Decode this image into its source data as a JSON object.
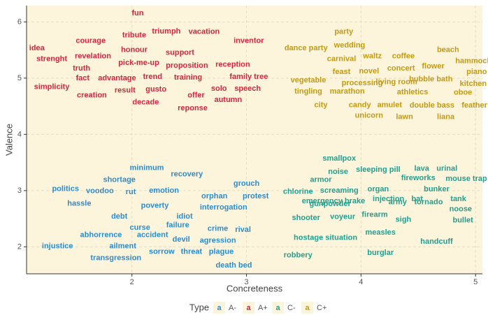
{
  "chart_data": {
    "type": "text-scatter",
    "x_label": "Concreteness",
    "y_label": "Valence",
    "xlim": [
      1.08,
      5.06
    ],
    "ylim": [
      1.52,
      6.29
    ],
    "xticks": [
      2,
      3,
      4,
      5
    ],
    "yticks": [
      2,
      3,
      4,
      5,
      6
    ],
    "grid": true,
    "legend_title": "Type",
    "legend_glyph": "a",
    "legend_position": "bottom",
    "series": [
      {
        "name": "A-",
        "color": "#2b8cd0",
        "labels": [
          "minimum",
          "recovery",
          "shortage",
          "grouch",
          "politics",
          "voodoo",
          "rut",
          "emotion",
          "orphan",
          "protest",
          "hassle",
          "poverty",
          "interrogation",
          "debt",
          "idiot",
          "curse",
          "failure",
          "crime",
          "rival",
          "abhorrence",
          "accident",
          "devil",
          "agression",
          "injustice",
          "ailment",
          "sorrow",
          "threat",
          "plague",
          "transgression",
          "death bed"
        ],
        "x": [
          2.13,
          2.48,
          1.89,
          3.0,
          1.42,
          1.72,
          1.99,
          2.28,
          2.72,
          3.08,
          1.54,
          2.2,
          2.8,
          1.89,
          2.46,
          2.07,
          2.4,
          2.75,
          2.97,
          1.73,
          2.18,
          2.43,
          2.75,
          1.35,
          1.92,
          2.26,
          2.52,
          2.78,
          1.86,
          2.89
        ],
        "y": [
          3.4,
          3.29,
          3.19,
          3.12,
          3.03,
          2.99,
          2.97,
          3.0,
          2.9,
          2.9,
          2.77,
          2.73,
          2.7,
          2.54,
          2.54,
          2.34,
          2.38,
          2.32,
          2.3,
          2.21,
          2.21,
          2.13,
          2.11,
          2.01,
          2.01,
          1.91,
          1.91,
          1.91,
          1.8,
          1.67
        ]
      },
      {
        "name": "A+",
        "color": "#d7263d",
        "labels": [
          "fun",
          "tribute",
          "triumph",
          "vacation",
          "inventor",
          "courage",
          "idea",
          "honour",
          "support",
          "strenght",
          "revelation",
          "pick-me-up",
          "proposition",
          "reception",
          "truth",
          "family tree",
          "fact",
          "advantage",
          "trend",
          "training",
          "simplicity",
          "result",
          "gusto",
          "solo",
          "speech",
          "creation",
          "offer",
          "autumn",
          "decade",
          "reponse"
        ],
        "x": [
          2.05,
          2.02,
          2.3,
          2.63,
          3.02,
          1.64,
          1.17,
          2.02,
          2.42,
          1.3,
          1.66,
          2.06,
          2.48,
          2.88,
          1.56,
          3.02,
          1.57,
          1.87,
          2.18,
          2.49,
          1.3,
          1.94,
          2.21,
          2.76,
          3.01,
          1.65,
          2.56,
          2.84,
          2.12,
          2.53
        ],
        "y": [
          6.15,
          5.76,
          5.83,
          5.82,
          5.66,
          5.66,
          5.53,
          5.5,
          5.45,
          5.34,
          5.39,
          5.27,
          5.22,
          5.24,
          5.17,
          5.02,
          5.0,
          5.0,
          5.02,
          5.01,
          4.84,
          4.78,
          4.8,
          4.81,
          4.81,
          4.69,
          4.69,
          4.61,
          4.57,
          4.46
        ]
      },
      {
        "name": "C-",
        "color": "#21a08f",
        "labels": [
          "smallpox",
          "noise",
          "sleeping pill",
          "lava",
          "urinal",
          "armor",
          "fireworks",
          "mouse trap",
          "chlorine",
          "screaming",
          "organ",
          "bunker",
          "emergency brake",
          "injection",
          "bat",
          "tank",
          "gunpowder",
          "army",
          "tornado",
          "voyeur",
          "firearm",
          "noose",
          "shooter",
          "sigh",
          "bullet",
          "hostage situation",
          "measles",
          "handcuff",
          "robbery",
          "burglar"
        ],
        "x": [
          3.81,
          3.8,
          4.15,
          4.53,
          4.75,
          3.65,
          4.5,
          4.92,
          3.45,
          3.81,
          4.15,
          4.66,
          3.76,
          4.24,
          4.49,
          4.85,
          3.73,
          4.32,
          4.59,
          3.84,
          4.12,
          4.87,
          3.52,
          4.37,
          4.89,
          3.69,
          4.17,
          4.66,
          3.45,
          4.17
        ],
        "y": [
          3.57,
          3.33,
          3.37,
          3.39,
          3.39,
          3.19,
          3.22,
          3.21,
          2.98,
          3.0,
          3.02,
          3.02,
          2.81,
          2.85,
          2.85,
          2.85,
          2.76,
          2.79,
          2.79,
          2.53,
          2.57,
          2.67,
          2.51,
          2.48,
          2.47,
          2.16,
          2.25,
          2.09,
          1.85,
          1.89
        ]
      },
      {
        "name": "C+",
        "color": "#c39a12",
        "labels": [
          "party",
          "wedding",
          "dance party",
          "beach",
          "carnival",
          "waltz",
          "coffee",
          "hammock",
          "concert",
          "flower",
          "feast",
          "novel",
          "piano",
          "vegetable",
          "processing",
          "living room",
          "bubble bath",
          "kitchen",
          "tingling",
          "marathon",
          "athletics",
          "oboe",
          "city",
          "candy",
          "amulet",
          "double bass",
          "feather",
          "unicorn",
          "lawn",
          "liana"
        ],
        "x": [
          3.85,
          3.9,
          3.52,
          4.76,
          3.83,
          4.1,
          4.37,
          4.98,
          4.35,
          4.63,
          3.83,
          4.07,
          5.01,
          3.54,
          4.01,
          4.31,
          4.61,
          4.98,
          3.54,
          3.88,
          4.45,
          4.89,
          3.65,
          3.99,
          4.25,
          4.62,
          4.99,
          4.07,
          4.38,
          4.74
        ],
        "y": [
          5.82,
          5.58,
          5.53,
          5.5,
          5.34,
          5.39,
          5.39,
          5.3,
          5.17,
          5.21,
          5.11,
          5.12,
          5.11,
          4.96,
          4.91,
          4.93,
          4.98,
          4.9,
          4.76,
          4.76,
          4.75,
          4.74,
          4.52,
          4.52,
          4.52,
          4.51,
          4.51,
          4.33,
          4.31,
          4.31
        ]
      }
    ]
  }
}
